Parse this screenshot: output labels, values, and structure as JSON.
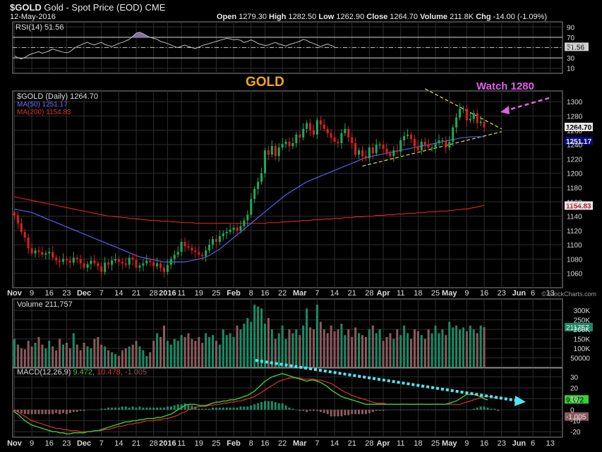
{
  "header": {
    "symbol": "$GOLD",
    "name": "Gold - Spot Price (EOD)",
    "exchange": "CME",
    "date": "12-May-2016",
    "open_label": "Open",
    "open": "1279.30",
    "high_label": "High",
    "high": "1282.50",
    "low_label": "Low",
    "low": "1262.90",
    "close_label": "Close",
    "close": "1264.70",
    "volume_label": "Volume",
    "volume": "211.8K",
    "chg_label": "Chg",
    "chg": "-14.00 (-1.09%)",
    "watermark": "© StockCharts.com"
  },
  "annotations": {
    "title": "GOLD",
    "watch": "Watch 1280"
  },
  "colors": {
    "up": "#1fa85a",
    "down": "#d8201e",
    "ma50": "#5b5bf0",
    "ma200": "#d42020",
    "rsi_fill": "#8a6da0",
    "macd_line": "#3ccc3c",
    "signal_line": "#e03030",
    "trend_line": "#e8e03a",
    "watch_color": "#e060e8",
    "arrow_color": "#4fe6f2",
    "vol_up": "#1a8a66",
    "vol_down": "#8a5a5e"
  },
  "chart_data": [
    {
      "type": "line",
      "name": "RSI",
      "legend": "RSI(14) 51.56",
      "y_ticks": [
        "90",
        "70",
        "50",
        "30",
        "10"
      ],
      "ylim": [
        0,
        100
      ],
      "levels": [
        70,
        50,
        30
      ],
      "last_value": "51.56",
      "values": [
        34,
        30,
        28,
        31,
        35,
        38,
        40,
        42,
        39,
        41,
        44,
        47,
        45,
        43,
        41,
        40,
        42,
        48,
        52,
        55,
        58,
        60,
        57,
        55,
        58,
        60,
        56,
        54,
        52,
        55,
        58,
        60,
        63,
        66,
        72,
        78,
        80,
        77,
        73,
        70,
        68,
        66,
        62,
        60,
        58,
        55,
        52,
        50,
        53,
        55,
        52,
        50,
        48,
        51,
        54,
        56,
        58,
        60,
        62,
        64,
        66,
        68,
        67,
        65,
        66,
        64,
        60,
        62,
        65,
        62,
        58,
        56,
        54,
        55,
        58,
        60,
        57,
        55,
        53,
        56,
        58,
        60,
        62,
        66,
        64,
        60,
        58,
        55,
        52,
        55,
        57,
        54,
        52
      ]
    },
    {
      "type": "candlestick",
      "name": "$GOLD (Daily)",
      "legend": "$GOLD (Daily) 1264.70",
      "ma50_legend": "MA(50) 1251.17",
      "ma200_legend": "MA(200) 1154.83",
      "ylim": [
        1040,
        1315
      ],
      "y_ticks": [
        1060,
        1080,
        1100,
        1120,
        1140,
        1160,
        1180,
        1200,
        1220,
        1240,
        1260,
        1280,
        1300
      ],
      "last_labels": {
        "close": "1264.70",
        "ma50": "1251.17",
        "ma200": "1154.83"
      },
      "x_ticks": [
        {
          "i": 0,
          "label": "Nov",
          "bold": true
        },
        {
          "i": 5,
          "label": "9"
        },
        {
          "i": 10,
          "label": "16"
        },
        {
          "i": 15,
          "label": "23"
        },
        {
          "i": 20,
          "label": "Dec",
          "bold": true
        },
        {
          "i": 25,
          "label": "7"
        },
        {
          "i": 30,
          "label": "14"
        },
        {
          "i": 35,
          "label": "21"
        },
        {
          "i": 40,
          "label": "28"
        },
        {
          "i": 44,
          "label": "2016",
          "bold": true
        },
        {
          "i": 48,
          "label": "11"
        },
        {
          "i": 53,
          "label": "19"
        },
        {
          "i": 58,
          "label": "25"
        },
        {
          "i": 63,
          "label": "Feb",
          "bold": true
        },
        {
          "i": 68,
          "label": "8"
        },
        {
          "i": 72,
          "label": "16"
        },
        {
          "i": 77,
          "label": "22"
        },
        {
          "i": 82,
          "label": "Mar",
          "bold": true
        },
        {
          "i": 87,
          "label": "7"
        },
        {
          "i": 92,
          "label": "14"
        },
        {
          "i": 97,
          "label": "21"
        },
        {
          "i": 102,
          "label": "28"
        },
        {
          "i": 106,
          "label": "Apr",
          "bold": true
        },
        {
          "i": 111,
          "label": "11"
        },
        {
          "i": 116,
          "label": "18"
        },
        {
          "i": 121,
          "label": "25"
        },
        {
          "i": 125,
          "label": "May",
          "bold": true
        },
        {
          "i": 130,
          "label": "9"
        },
        {
          "i": 135,
          "label": "16"
        },
        {
          "i": 140,
          "label": "23"
        },
        {
          "i": 145,
          "label": "Jun",
          "bold": true
        },
        {
          "i": 149,
          "label": "6"
        },
        {
          "i": 154,
          "label": "13"
        }
      ],
      "close": [
        1141,
        1130,
        1118,
        1110,
        1095,
        1088,
        1092,
        1090,
        1086,
        1088,
        1090,
        1082,
        1078,
        1076,
        1080,
        1078,
        1075,
        1082,
        1080,
        1074,
        1068,
        1073,
        1078,
        1074,
        1070,
        1062,
        1075,
        1072,
        1078,
        1080,
        1076,
        1074,
        1072,
        1082,
        1079,
        1068,
        1071,
        1074,
        1078,
        1076,
        1070,
        1074,
        1068,
        1062,
        1072,
        1080,
        1086,
        1090,
        1104,
        1098,
        1096,
        1092,
        1090,
        1086,
        1084,
        1092,
        1100,
        1108,
        1104,
        1112,
        1116,
        1118,
        1121,
        1124,
        1120,
        1126,
        1134,
        1142,
        1164,
        1178,
        1188,
        1200,
        1232,
        1226,
        1238,
        1224,
        1236,
        1241,
        1244,
        1238,
        1242,
        1254,
        1250,
        1262,
        1270,
        1260,
        1254,
        1274,
        1268,
        1262,
        1256,
        1250,
        1244,
        1242,
        1256,
        1262,
        1250,
        1242,
        1226,
        1232,
        1224,
        1221,
        1236,
        1228,
        1240,
        1240,
        1234,
        1228,
        1224,
        1232,
        1230,
        1246,
        1252,
        1254,
        1248,
        1238,
        1232,
        1244,
        1240,
        1236,
        1236,
        1242,
        1246,
        1246,
        1236,
        1244,
        1264,
        1278,
        1290,
        1290,
        1274,
        1276,
        1284,
        1270,
        1272,
        1264
      ],
      "ma50": [
        1150,
        1149,
        1148,
        1147,
        1146,
        1145,
        1143,
        1141,
        1139,
        1137,
        1135,
        1133,
        1131,
        1129,
        1127,
        1125,
        1123,
        1121,
        1119,
        1117,
        1115,
        1113,
        1111,
        1109,
        1107,
        1105,
        1103,
        1101,
        1099,
        1097,
        1095,
        1093,
        1091,
        1089,
        1087,
        1085,
        1083,
        1082,
        1081,
        1080,
        1079,
        1078,
        1077,
        1076,
        1076,
        1076,
        1076,
        1076,
        1076,
        1076,
        1077,
        1078,
        1079,
        1080,
        1081,
        1083,
        1085,
        1088,
        1091,
        1094,
        1098,
        1102,
        1106,
        1110,
        1114,
        1118,
        1122,
        1126,
        1130,
        1134,
        1138,
        1142,
        1146,
        1150,
        1154,
        1158,
        1162,
        1166,
        1170,
        1173,
        1176,
        1179,
        1182,
        1185,
        1188,
        1190,
        1192,
        1194,
        1196,
        1198,
        1200,
        1202,
        1204,
        1206,
        1208,
        1210,
        1212,
        1214,
        1216,
        1218,
        1220,
        1222,
        1223,
        1224,
        1225,
        1226,
        1227,
        1228,
        1229,
        1230,
        1231,
        1232,
        1233,
        1234,
        1235,
        1236,
        1237,
        1238,
        1239,
        1240,
        1241,
        1242,
        1243,
        1244,
        1245,
        1246,
        1247,
        1248,
        1249,
        1250,
        1250,
        1251,
        1251,
        1251,
        1251,
        1251
      ],
      "ma200": [
        1167,
        1166,
        1165,
        1164,
        1163,
        1162,
        1161,
        1160,
        1159,
        1158,
        1157,
        1156,
        1155,
        1154,
        1153,
        1152,
        1151,
        1150,
        1149,
        1148,
        1147,
        1146,
        1145,
        1144,
        1143,
        1142,
        1141,
        1140,
        1140,
        1139,
        1139,
        1138,
        1138,
        1137,
        1137,
        1136,
        1136,
        1135,
        1135,
        1134,
        1134,
        1134,
        1133,
        1133,
        1133,
        1132,
        1132,
        1132,
        1131,
        1131,
        1131,
        1131,
        1130,
        1130,
        1130,
        1130,
        1130,
        1130,
        1130,
        1130,
        1130,
        1130,
        1130,
        1130,
        1130,
        1130,
        1130,
        1130,
        1130,
        1130,
        1130,
        1130,
        1130,
        1131,
        1131,
        1131,
        1131,
        1132,
        1132,
        1132,
        1133,
        1133,
        1133,
        1134,
        1134,
        1134,
        1135,
        1135,
        1135,
        1136,
        1136,
        1136,
        1137,
        1137,
        1137,
        1138,
        1138,
        1138,
        1139,
        1139,
        1139,
        1140,
        1140,
        1140,
        1141,
        1141,
        1141,
        1142,
        1142,
        1142,
        1143,
        1143,
        1143,
        1144,
        1144,
        1144,
        1145,
        1145,
        1145,
        1146,
        1146,
        1146,
        1147,
        1147,
        1147,
        1148,
        1148,
        1149,
        1149,
        1150,
        1150,
        1151,
        1152,
        1153,
        1154,
        1155
      ]
    },
    {
      "type": "bar",
      "name": "Volume",
      "legend": "Volume 211,757",
      "ylim": [
        0,
        360000
      ],
      "y_tick_labels": [
        "300K",
        "250K",
        "200K",
        "150K",
        "100K",
        "50000"
      ],
      "y_tick_values": [
        300000,
        250000,
        200000,
        150000,
        100000,
        50000
      ],
      "last_value": "211757",
      "values": [
        150000,
        120000,
        100000,
        95000,
        140000,
        110000,
        130000,
        160000,
        120000,
        100000,
        140000,
        110000,
        90000,
        150000,
        120000,
        130000,
        100000,
        180000,
        120000,
        90000,
        130000,
        110000,
        100000,
        150000,
        160000,
        120000,
        110000,
        90000,
        80000,
        70000,
        60000,
        90000,
        100000,
        110000,
        120000,
        140000,
        110000,
        90000,
        60000,
        80000,
        140000,
        180000,
        160000,
        220000,
        140000,
        120000,
        150000,
        140000,
        170000,
        160000,
        180000,
        150000,
        140000,
        160000,
        130000,
        180000,
        160000,
        170000,
        140000,
        120000,
        200000,
        170000,
        180000,
        160000,
        220000,
        200000,
        230000,
        260000,
        240000,
        330000,
        320000,
        310000,
        230000,
        260000,
        200000,
        150000,
        180000,
        220000,
        150000,
        200000,
        180000,
        200000,
        170000,
        220000,
        310000,
        210000,
        200000,
        330000,
        240000,
        200000,
        180000,
        220000,
        190000,
        200000,
        230000,
        170000,
        200000,
        160000,
        210000,
        180000,
        170000,
        160000,
        200000,
        220000,
        180000,
        200000,
        140000,
        160000,
        180000,
        150000,
        200000,
        170000,
        220000,
        180000,
        150000,
        200000,
        190000,
        170000,
        150000,
        200000,
        180000,
        220000,
        180000,
        200000,
        170000,
        240000,
        210000,
        220000,
        200000,
        210000,
        190000,
        220000,
        200000,
        180000,
        220000,
        212000
      ]
    },
    {
      "type": "line",
      "name": "MACD",
      "legend": "MACD(12,26,9) 9.472, 10.478, -1.005",
      "legend_parts": {
        "main": "MACD(12,26,9)",
        "macd": "9.472,",
        "signal": "10.478,",
        "hist": "-1.005"
      },
      "ylim": [
        -25,
        38
      ],
      "y_ticks": [
        "30",
        "20",
        "10",
        "0",
        "-10",
        "-20"
      ],
      "y_tick_values": [
        30,
        20,
        10,
        0,
        -10,
        -20
      ],
      "last_labels": {
        "macd": "9.472",
        "hist": "-1.005"
      },
      "macd": [
        -2,
        -4,
        -7,
        -10,
        -12,
        -14,
        -15,
        -16,
        -17,
        -18,
        -19,
        -20,
        -20,
        -21,
        -21,
        -22,
        -22,
        -21,
        -21,
        -21,
        -21,
        -20,
        -20,
        -19,
        -19,
        -18,
        -17,
        -16,
        -15,
        -14,
        -13,
        -12,
        -11,
        -11,
        -10,
        -10,
        -9,
        -9,
        -8,
        -8,
        -8,
        -7,
        -7,
        -6,
        -5,
        -4,
        -2,
        0,
        2,
        4,
        5,
        5,
        5,
        4,
        4,
        4,
        5,
        6,
        7,
        7,
        8,
        8,
        9,
        9,
        10,
        11,
        12,
        13,
        15,
        17,
        20,
        23,
        26,
        28,
        30,
        31,
        32,
        33,
        32,
        31,
        30,
        29,
        28,
        27,
        26,
        27,
        27,
        26,
        25,
        23,
        21,
        18,
        16,
        14,
        12,
        11,
        10,
        9,
        8,
        7,
        6,
        5,
        5,
        5,
        5,
        5,
        5,
        5,
        5,
        5,
        5,
        5,
        5,
        5,
        5,
        5,
        5,
        5,
        5,
        5,
        5,
        5,
        5,
        5,
        5,
        6,
        7,
        8,
        10,
        12,
        14,
        14,
        14,
        13,
        12,
        10,
        9
      ],
      "signal": [
        0,
        -2,
        -4,
        -6,
        -8,
        -10,
        -11,
        -12,
        -13,
        -14,
        -15,
        -16,
        -17,
        -17,
        -18,
        -18,
        -19,
        -19,
        -19,
        -20,
        -20,
        -20,
        -20,
        -19,
        -19,
        -19,
        -18,
        -18,
        -17,
        -16,
        -15,
        -15,
        -14,
        -13,
        -13,
        -12,
        -12,
        -11,
        -10,
        -10,
        -10,
        -9,
        -9,
        -8,
        -8,
        -7,
        -6,
        -5,
        -3,
        -2,
        0,
        1,
        2,
        3,
        3,
        3,
        4,
        4,
        5,
        5,
        6,
        6,
        7,
        7,
        8,
        8,
        9,
        10,
        11,
        12,
        14,
        16,
        18,
        20,
        22,
        24,
        26,
        27,
        28,
        29,
        29,
        29,
        29,
        28,
        28,
        28,
        28,
        27,
        27,
        26,
        25,
        24,
        22,
        20,
        18,
        16,
        15,
        13,
        12,
        11,
        10,
        9,
        8,
        7,
        6,
        6,
        6,
        5,
        5,
        5,
        5,
        5,
        5,
        5,
        5,
        5,
        5,
        5,
        5,
        5,
        5,
        5,
        5,
        5,
        5,
        5,
        5,
        5,
        5,
        6,
        7,
        8,
        9,
        10,
        11,
        12,
        12,
        12,
        11,
        10
      ],
      "hist": [
        -2,
        -2,
        -3,
        -4,
        -4,
        -4,
        -4,
        -4,
        -4,
        -4,
        -4,
        -4,
        -3,
        -4,
        -3,
        -4,
        -3,
        -2,
        -2,
        -1,
        -1,
        0,
        0,
        0,
        0,
        1,
        1,
        2,
        2,
        2,
        2,
        3,
        3,
        2,
        3,
        2,
        3,
        2,
        2,
        2,
        2,
        2,
        2,
        2,
        3,
        3,
        4,
        5,
        5,
        6,
        5,
        4,
        3,
        1,
        1,
        1,
        1,
        2,
        2,
        2,
        2,
        2,
        2,
        2,
        2,
        3,
        3,
        3,
        4,
        5,
        6,
        7,
        8,
        8,
        8,
        7,
        6,
        6,
        4,
        2,
        1,
        0,
        -1,
        -1,
        -2,
        -1,
        -1,
        -1,
        -2,
        -3,
        -4,
        -6,
        -6,
        -6,
        -6,
        -5,
        -5,
        -4,
        -4,
        -4,
        -4,
        -4,
        -3,
        -2,
        -1,
        -1,
        -1,
        0,
        0,
        0,
        0,
        0,
        0,
        0,
        0,
        0,
        0,
        0,
        0,
        0,
        0,
        0,
        0,
        0,
        0,
        0,
        0,
        0,
        0,
        0,
        0,
        0,
        1,
        2,
        3,
        3,
        2,
        1,
        1,
        -1
      ]
    }
  ]
}
